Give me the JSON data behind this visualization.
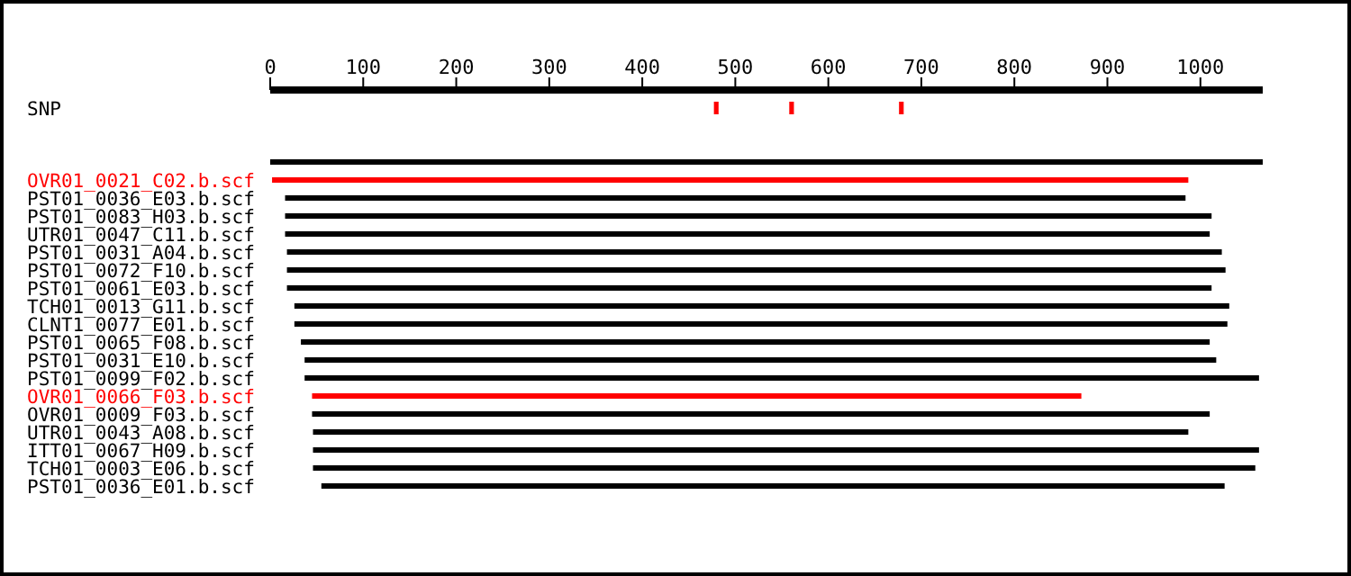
{
  "chart_data": {
    "type": "bar",
    "orientation": "horizontal",
    "categories": [
      "SNP",
      null,
      null,
      null,
      "OVR01_0021_C02.b.scf",
      "PST01_0036_E03.b.scf",
      "PST01_0083_H03.b.scf",
      "UTR01_0047_C11.b.scf",
      "PST01_0031_A04.b.scf",
      "PST01_0072_F10.b.scf",
      "PST01_0061_E03.b.scf",
      "TCH01_0013_G11.b.scf",
      "CLNT1_0077_E01.b.scf",
      "PST01_0065_F08.b.scf",
      "PST01_0031_E10.b.scf",
      "PST01_0099_F02.b.scf",
      "OVR01_0066_F03.b.scf",
      "OVR01_0009_F03.b.scf",
      "UTR01_0043_A08.b.scf",
      "ITT01_0067_H09.b.scf",
      "TCH01_0003_E06.b.scf",
      "PST01_0036_E01.b.scf"
    ],
    "series": [
      {
        "colors": [
          null,
          null,
          null,
          "#000000",
          "#ff0000",
          "#000000",
          "#000000",
          "#000000",
          "#000000",
          "#000000",
          "#000000",
          "#000000",
          "#000000",
          "#000000",
          "#000000",
          "#000000",
          "#ff0000",
          "#000000",
          "#000000",
          "#000000",
          "#000000",
          "#000000"
        ],
        "base": [
          null,
          null,
          null,
          0,
          2,
          16,
          16,
          16,
          18,
          18,
          18,
          26,
          26,
          33,
          37,
          37,
          45,
          45,
          46,
          46,
          46,
          55
        ],
        "values": [
          null,
          null,
          null,
          1067,
          985,
          968,
          996,
          994,
          1005,
          1009,
          994,
          1005,
          1003,
          977,
          980,
          1026,
          827,
          965,
          941,
          1017,
          1013,
          971
        ]
      },
      {
        "color": "#ff0000",
        "base": [
          477,
          null,
          null,
          null,
          null,
          null,
          null,
          null,
          null,
          null,
          null,
          null,
          null,
          null,
          null,
          null,
          null,
          null,
          null,
          null,
          null,
          null
        ],
        "values": [
          5,
          null,
          null,
          null,
          null,
          null,
          null,
          null,
          null,
          null,
          null,
          null,
          null,
          null,
          null,
          null,
          null,
          null,
          null,
          null,
          null,
          null
        ]
      },
      {
        "color": "#ff0000",
        "base": [
          558,
          null,
          null,
          null,
          null,
          null,
          null,
          null,
          null,
          null,
          null,
          null,
          null,
          null,
          null,
          null,
          null,
          null,
          null,
          null,
          null,
          null
        ],
        "values": [
          5,
          null,
          null,
          null,
          null,
          null,
          null,
          null,
          null,
          null,
          null,
          null,
          null,
          null,
          null,
          null,
          null,
          null,
          null,
          null,
          null,
          null
        ]
      },
      {
        "color": "#ff0000",
        "base": [
          676,
          null,
          null,
          null,
          null,
          null,
          null,
          null,
          null,
          null,
          null,
          null,
          null,
          null,
          null,
          null,
          null,
          null,
          null,
          null,
          null,
          null
        ],
        "values": [
          5,
          null,
          null,
          null,
          null,
          null,
          null,
          null,
          null,
          null,
          null,
          null,
          null,
          null,
          null,
          null,
          null,
          null,
          null,
          null,
          null,
          null
        ]
      }
    ],
    "xlim": [
      0,
      1067
    ],
    "xticks": [
      0,
      100,
      200,
      300,
      400,
      500,
      600,
      700,
      800,
      900,
      1000
    ]
  }
}
